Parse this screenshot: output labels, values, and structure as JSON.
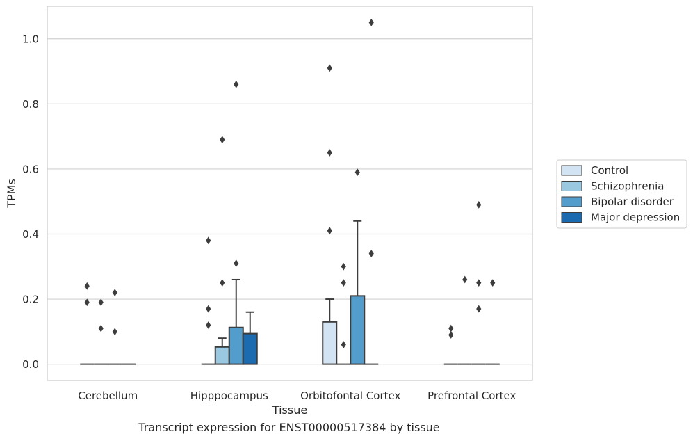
{
  "caption": "Transcript expression for ENST00000517384 by tissue",
  "chart_data": {
    "type": "bar",
    "xlabel": "Tissue",
    "ylabel": "TPMs",
    "ylim": [
      -0.05,
      1.1
    ],
    "yticks": [
      0.0,
      0.2,
      0.4,
      0.6,
      0.8,
      1.0
    ],
    "ytick_labels": [
      "0.0",
      "0.2",
      "0.4",
      "0.6",
      "0.8",
      "1.0"
    ],
    "grid": true,
    "legend_position": "right",
    "categories": [
      "Cerebellum",
      "Hipppocampus",
      "Orbitofontal Cortex",
      "Prefrontal Cortex"
    ],
    "series": [
      {
        "name": "Control",
        "color": "#d2e3f3",
        "box_top": [
          0,
          0,
          0.13,
          0
        ],
        "whisker_top": [
          0,
          0,
          0.2,
          0
        ],
        "outliers": [
          [
            0.19,
            0.24
          ],
          [
            0.17,
            0.12,
            0.38
          ],
          [
            0.91,
            0.65,
            0.41
          ],
          [
            0.11,
            0.09
          ]
        ]
      },
      {
        "name": "Schizophrenia",
        "color": "#9ac8e0",
        "box_top": [
          0,
          0.053,
          0,
          0
        ],
        "whisker_top": [
          0,
          0.08,
          0,
          0
        ],
        "outliers": [
          [
            0.19,
            0.11
          ],
          [
            0.69,
            0.25
          ],
          [
            0.3,
            0.25,
            0.06
          ],
          [
            0.26
          ]
        ]
      },
      {
        "name": "Bipolar disorder",
        "color": "#529dcc",
        "box_top": [
          0,
          0.113,
          0.21,
          0
        ],
        "whisker_top": [
          0,
          0.26,
          0.44,
          0
        ],
        "outliers": [
          [
            0.22,
            0.1
          ],
          [
            0.86,
            0.31
          ],
          [
            0.59
          ],
          [
            0.49,
            0.25,
            0.17
          ]
        ]
      },
      {
        "name": "Major depression",
        "color": "#1c6aaf",
        "box_top": [
          0,
          0.094,
          0,
          0
        ],
        "whisker_top": [
          0,
          0.16,
          0,
          0
        ],
        "outliers": [
          [],
          [],
          [
            1.05,
            0.34
          ],
          [
            0.25
          ]
        ]
      }
    ]
  }
}
